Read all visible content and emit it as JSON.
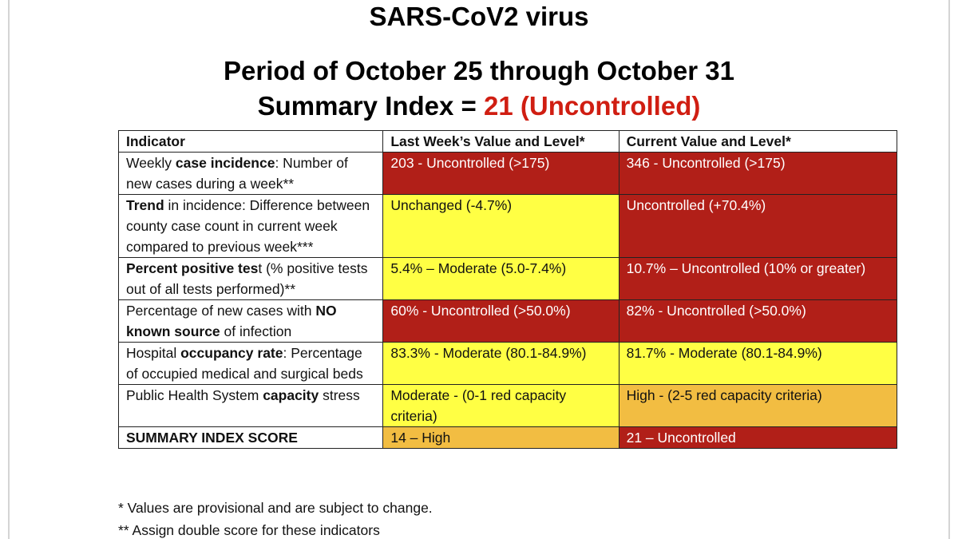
{
  "header": {
    "virus": "SARS-CoV2 virus",
    "period": "Period of October 25 through October 31",
    "summary_prefix": "Summary Index = ",
    "summary_value": "21 (Uncontrolled)"
  },
  "table": {
    "columns": [
      "Indicator",
      "Last Week’s Value and Level*",
      "Current Value and Level*"
    ],
    "rows": [
      {
        "indicator": {
          "pre": "Weekly ",
          "bold": "case incidence",
          "post": ": Number of new cases during a week**"
        },
        "last": {
          "text": "203 - Uncontrolled (>175)",
          "level": "red"
        },
        "current": {
          "text": "346 - Uncontrolled (>175)",
          "level": "red"
        }
      },
      {
        "indicator": {
          "pre": "",
          "bold": "Trend",
          "post": " in incidence: Difference between county case count in current week compared to previous week***"
        },
        "last": {
          "text": "Unchanged (-4.7%)",
          "level": "yellow"
        },
        "current": {
          "text": "Uncontrolled (+70.4%)",
          "level": "red"
        }
      },
      {
        "indicator": {
          "pre": "",
          "bold": "Percent positive tes",
          "post": "t (% positive tests out of all tests performed)**"
        },
        "last": {
          "text": "5.4% – Moderate (5.0-7.4%)",
          "level": "yellow"
        },
        "current": {
          "text": "10.7% – Uncontrolled (10% or greater)",
          "level": "red"
        }
      },
      {
        "indicator": {
          "pre": "Percentage of new cases with ",
          "bold": "NO known source",
          "post": " of infection"
        },
        "last": {
          "text": "60% - Uncontrolled (>50.0%)",
          "level": "red"
        },
        "current": {
          "text": "82% - Uncontrolled (>50.0%)",
          "level": "red"
        }
      },
      {
        "indicator": {
          "pre": "Hospital ",
          "bold": "occupancy rate",
          "post": ": Percentage of occupied medical and surgical beds"
        },
        "last": {
          "text": "83.3% - Moderate (80.1-84.9%)",
          "level": "yellow"
        },
        "current": {
          "text": "81.7% - Moderate (80.1-84.9%)",
          "level": "yellow"
        }
      },
      {
        "indicator": {
          "pre": "Public Health System ",
          "bold": "capacity",
          "post": " stress"
        },
        "last": {
          "text": "Moderate - (0-1 red capacity criteria)",
          "level": "yellow"
        },
        "current": {
          "text": "High - (2-5 red capacity criteria)",
          "level": "orange"
        }
      },
      {
        "indicator": {
          "pre": "",
          "bold": "SUMMARY INDEX SCORE",
          "post": ""
        },
        "last": {
          "text": "14 – High",
          "level": "orange"
        },
        "current": {
          "text": "21 – Uncontrolled",
          "level": "red"
        }
      }
    ]
  },
  "footnotes": [
    "* Values are provisional and are subject to change.",
    "** Assign double score for these indicators"
  ],
  "colors": {
    "red": "#b11f18",
    "yellow": "#ffff44",
    "orange": "#f2bd42",
    "summary_text": "#d01e12"
  }
}
